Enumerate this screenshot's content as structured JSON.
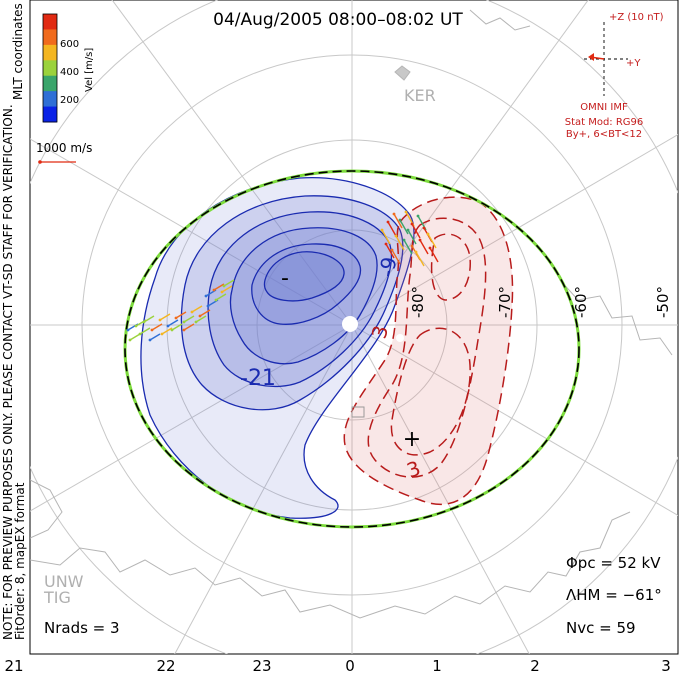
{
  "title": "04/Aug/2005 08:00–08:02 UT",
  "colorbar": {
    "label": "Vel [m/s]",
    "ticks": [
      "200",
      "400",
      "600"
    ],
    "colors": [
      "#0a22e6",
      "#2f6fd6",
      "#3aa56b",
      "#9bd23c",
      "#f4b621",
      "#f06b1d",
      "#e12a12"
    ]
  },
  "scale_vector_label": "1000 m/s",
  "coordinates_label": "MLT coordinates",
  "side_note": "NOTE: FOR PREVIEW PURPOSES ONLY. PLEASE CONTACT VT-SD STAFF FOR VERIFICATION.",
  "fit_note": "FitOrder: 8, mapEX format",
  "imf": {
    "bz_label": "+Z (10 nT)",
    "by_label": "+Y",
    "source": "OMNI IMF",
    "model_line1": "Stat Mod: RG96",
    "model_line2": "By+, 6<BT<12"
  },
  "stations": [
    "KER",
    "UNW",
    "TIG"
  ],
  "mlt_labels": [
    "21",
    "22",
    "23",
    "0",
    "1",
    "2",
    "3"
  ],
  "lat_labels": [
    "-50°",
    "-60°",
    "-70°",
    "-80°"
  ],
  "stats": {
    "phi_pc": "Φpc = 52 kV",
    "lambda_hm": "ΛHM = −61°",
    "n_vc": "Nvc = 59",
    "n_rads": "Nrads = 3"
  },
  "chart_data": {
    "type": "contour",
    "title": "04/Aug/2005 08:00–08:02 UT",
    "xlabel": "MLT",
    "x_ticks": [
      "21",
      "22",
      "23",
      "0",
      "1",
      "2",
      "3"
    ],
    "lat_ticks": [
      -50,
      -60,
      -70,
      -80
    ],
    "colors": {
      "negative_cell": "#1a2bb0",
      "positive_cell": "#b81c1c",
      "hm_boundary": "#000000"
    },
    "contour_labels": {
      "negative": [
        "-9",
        "-21"
      ],
      "positive": [
        "3",
        "3"
      ]
    },
    "min_potential_marker": "-",
    "max_potential_marker": "+",
    "phi_pc_kV": 52,
    "lambda_hm_deg": -61,
    "n_vc": 59,
    "n_rads": 3
  }
}
